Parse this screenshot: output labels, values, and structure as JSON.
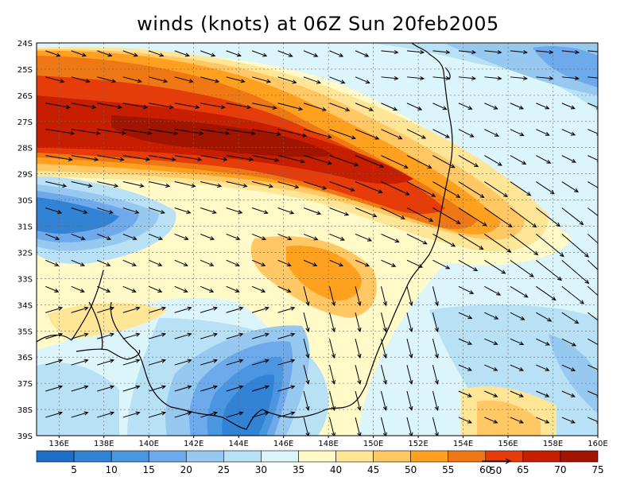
{
  "title": "winds (knots) at 06Z Sun 20feb2005",
  "map": {
    "lon_range": [
      135,
      160
    ],
    "lat_range": [
      -39,
      -24
    ],
    "lon_ticks": [
      {
        "lon": 136,
        "label": "136E"
      },
      {
        "lon": 138,
        "label": "138E"
      },
      {
        "lon": 140,
        "label": "140E"
      },
      {
        "lon": 142,
        "label": "142E"
      },
      {
        "lon": 144,
        "label": "144E"
      },
      {
        "lon": 146,
        "label": "146E"
      },
      {
        "lon": 148,
        "label": "148E"
      },
      {
        "lon": 150,
        "label": "150E"
      },
      {
        "lon": 152,
        "label": "152E"
      },
      {
        "lon": 154,
        "label": "154E"
      },
      {
        "lon": 156,
        "label": "156E"
      },
      {
        "lon": 158,
        "label": "158E"
      },
      {
        "lon": 160,
        "label": "160E"
      }
    ],
    "lat_ticks": [
      {
        "lat": -24,
        "label": "24S"
      },
      {
        "lat": -25,
        "label": "25S"
      },
      {
        "lat": -26,
        "label": "26S"
      },
      {
        "lat": -27,
        "label": "27S"
      },
      {
        "lat": -28,
        "label": "28S"
      },
      {
        "lat": -29,
        "label": "29S"
      },
      {
        "lat": -30,
        "label": "30S"
      },
      {
        "lat": -31,
        "label": "31S"
      },
      {
        "lat": -32,
        "label": "32S"
      },
      {
        "lat": -33,
        "label": "33S"
      },
      {
        "lat": -34,
        "label": "34S"
      },
      {
        "lat": -35,
        "label": "35S"
      },
      {
        "lat": -36,
        "label": "36S"
      },
      {
        "lat": -37,
        "label": "37S"
      },
      {
        "lat": -38,
        "label": "38S"
      },
      {
        "lat": -39,
        "label": "39S"
      }
    ],
    "grid": true,
    "colorbar": {
      "colors": [
        "#1e6ec8",
        "#3282d6",
        "#4b96e1",
        "#6eaaeb",
        "#96c8f0",
        "#b9e1f5",
        "#dcf5fa",
        "#fffac8",
        "#ffe696",
        "#ffc864",
        "#ffa01e",
        "#f07814",
        "#e63c0a",
        "#c81e00",
        "#a01400"
      ],
      "labels": [
        "5",
        "10",
        "15",
        "20",
        "25",
        "30",
        "35",
        "40",
        "45",
        "50",
        "55",
        "60",
        "65",
        "70",
        "75"
      ]
    },
    "reference_vector": {
      "label": "50"
    }
  }
}
